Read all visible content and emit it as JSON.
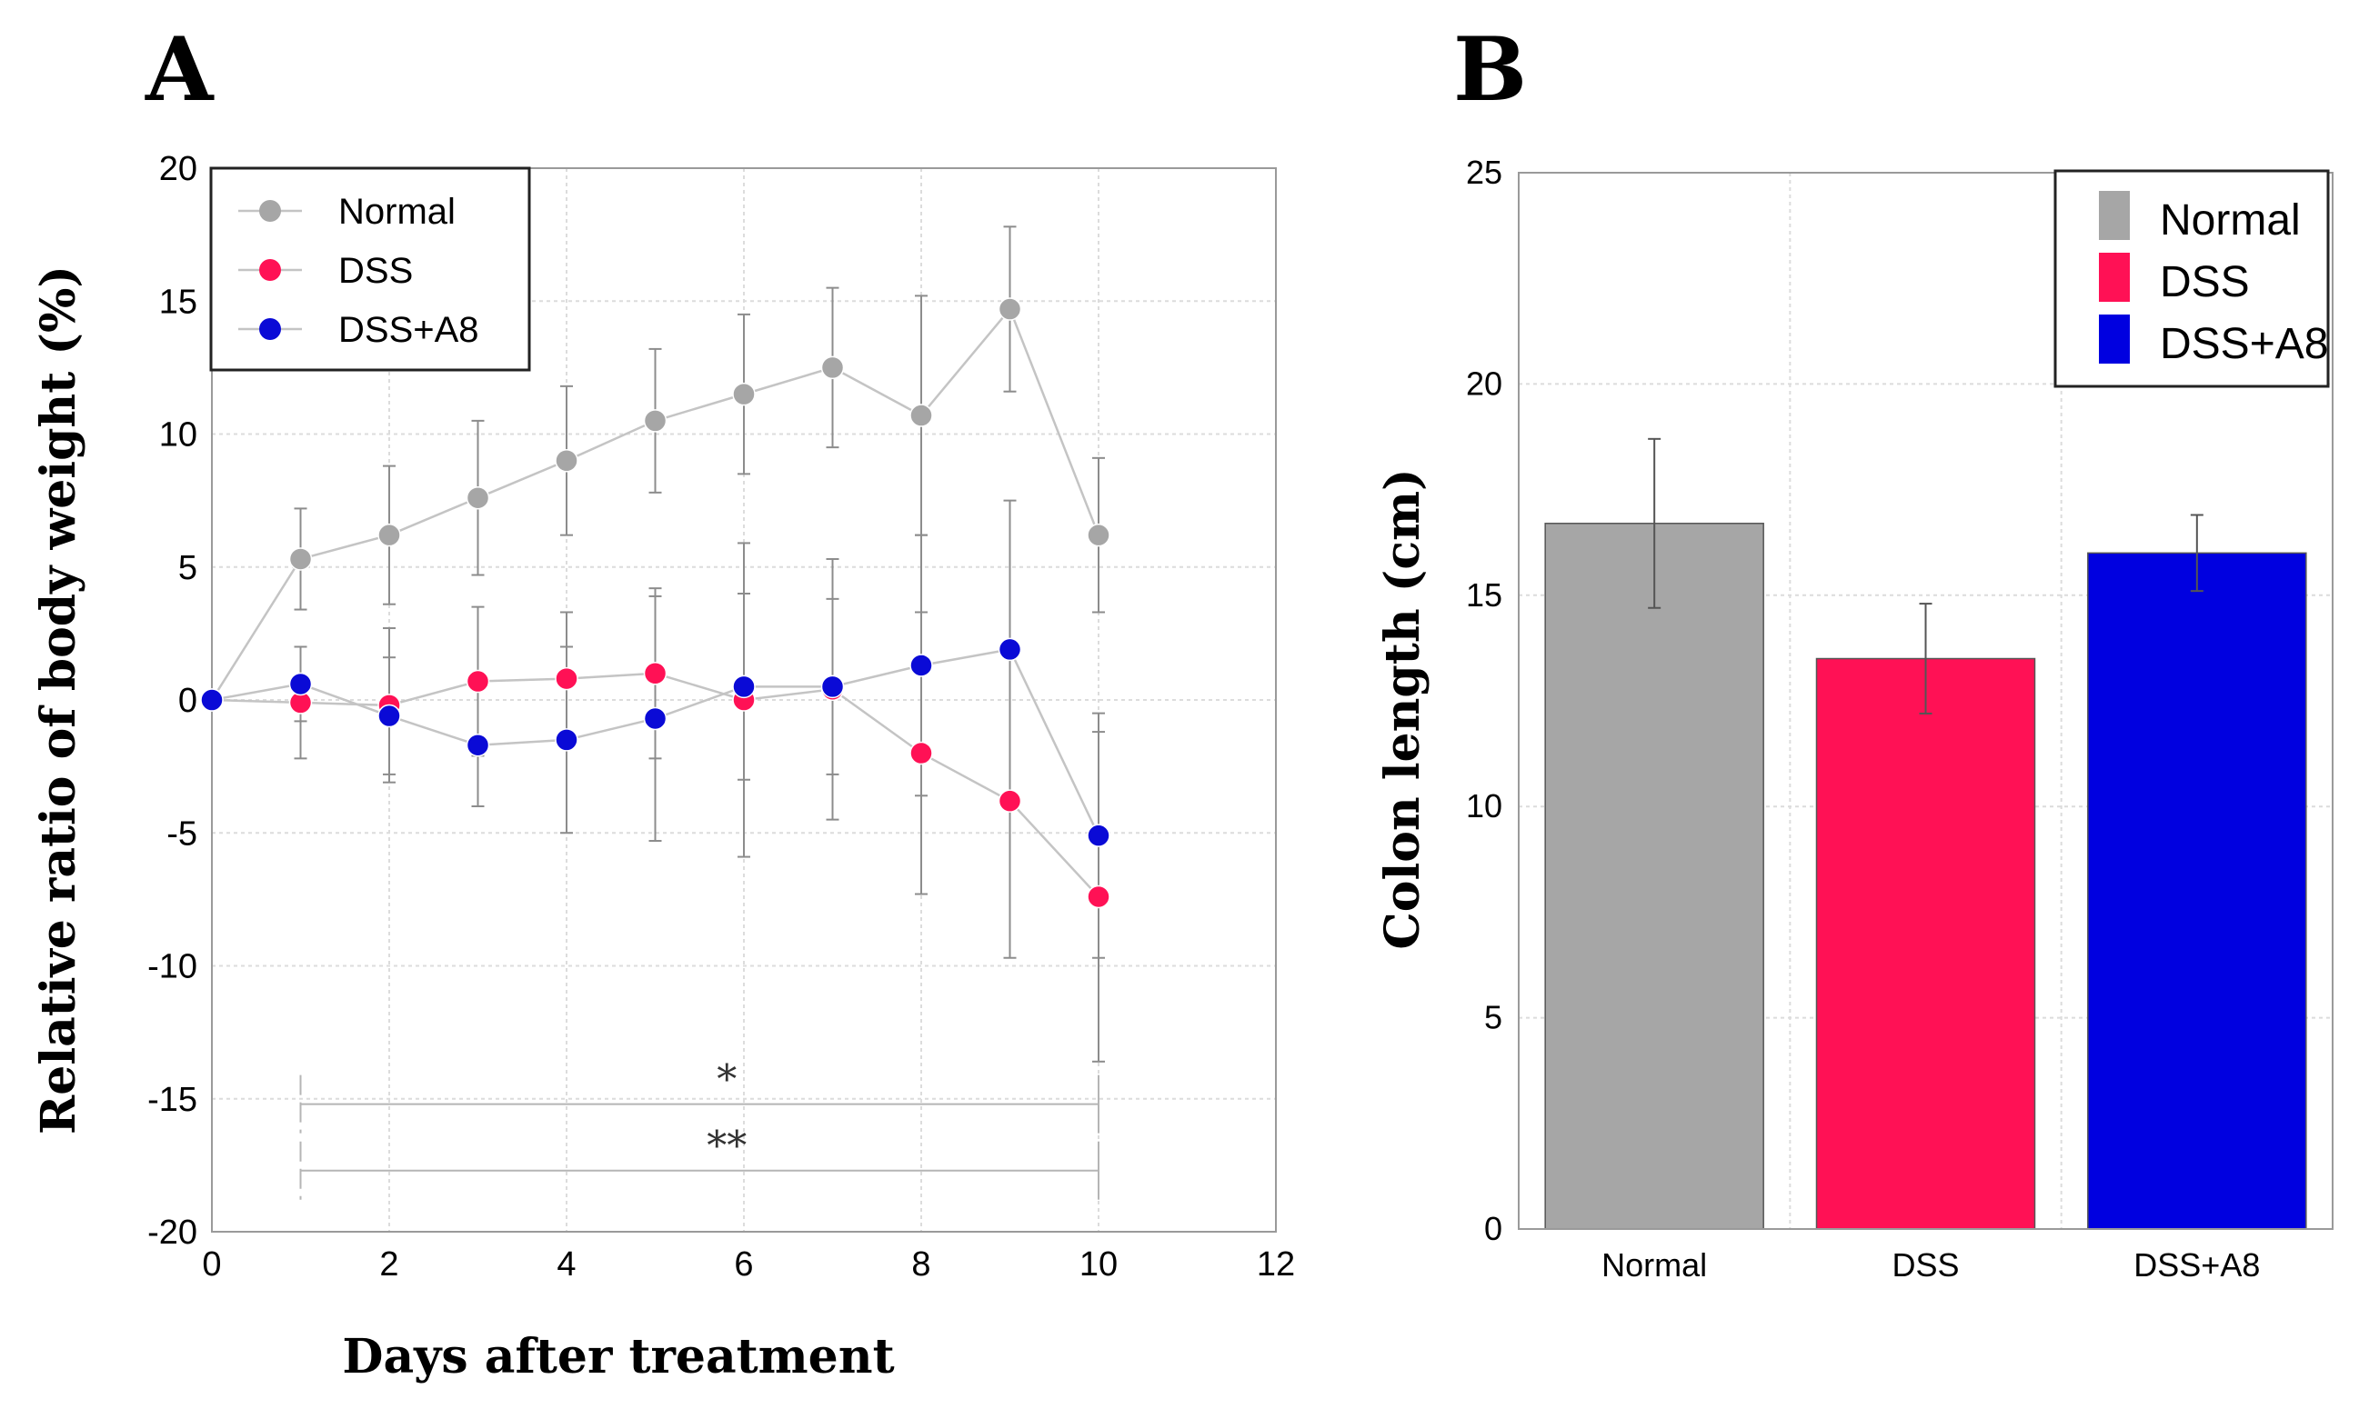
{
  "chart_data": [
    {
      "panel_label": "A",
      "type": "line",
      "xlabel": "Days after treatment",
      "ylabel": "Relative ratio of body weight (%)",
      "xlim": [
        0,
        12
      ],
      "ylim": [
        -20,
        20
      ],
      "xticks": [
        "0",
        "2",
        "4",
        "6",
        "8",
        "10",
        "12"
      ],
      "yticks": [
        "20",
        "15",
        "10",
        "5",
        "0",
        "-5",
        "-10",
        "-15",
        "-20"
      ],
      "grid": true,
      "legend_position": "top-left",
      "x": [
        0,
        1,
        2,
        3,
        4,
        5,
        6,
        7,
        8,
        9,
        10
      ],
      "series": [
        {
          "name": "Normal",
          "color": "#a6a6a6",
          "values": [
            0,
            5.3,
            6.2,
            7.6,
            9.0,
            10.5,
            11.5,
            12.5,
            10.7,
            14.7,
            6.2
          ],
          "errors": [
            0,
            1.9,
            2.6,
            2.9,
            2.8,
            2.7,
            3.0,
            3.0,
            4.5,
            3.1,
            2.9
          ]
        },
        {
          "name": "DSS",
          "color": "#ff1155",
          "values": [
            0,
            -0.1,
            -0.2,
            0.7,
            0.8,
            1.0,
            0.0,
            0.4,
            -2.0,
            -3.8,
            -7.4
          ],
          "errors": [
            0,
            2.1,
            2.9,
            2.8,
            2.5,
            3.2,
            5.9,
            4.9,
            5.3,
            5.9,
            6.2
          ]
        },
        {
          "name": "DSS+A8",
          "color": "#0a0ad6",
          "values": [
            0,
            0.6,
            -0.6,
            -1.7,
            -1.5,
            -0.7,
            0.5,
            0.5,
            1.3,
            1.9,
            -5.1
          ],
          "errors": [
            0,
            1.4,
            2.2,
            2.3,
            3.5,
            4.6,
            3.5,
            3.3,
            4.9,
            5.6,
            4.6
          ]
        }
      ],
      "significance": [
        {
          "label": "*",
          "x_start": 1,
          "x_end": 10,
          "y": -15.2
        },
        {
          "label": "**",
          "x_start": 1,
          "x_end": 10,
          "y": -17.7
        }
      ]
    },
    {
      "panel_label": "B",
      "type": "bar",
      "xlabel": "",
      "ylabel": "Colon length (cm)",
      "ylim": [
        0,
        25
      ],
      "yticks": [
        "25",
        "20",
        "15",
        "10",
        "5",
        "0"
      ],
      "categories": [
        "Normal",
        "DSS",
        "DSS+A8"
      ],
      "values": [
        16.7,
        13.5,
        16.0
      ],
      "errors": [
        2.0,
        1.3,
        0.9
      ],
      "colors": [
        "#a6a6a6",
        "#ff1155",
        "#0000e0"
      ],
      "grid": true,
      "legend_position": "top-right",
      "legend": [
        "Normal",
        "DSS",
        "DSS+A8"
      ]
    }
  ]
}
